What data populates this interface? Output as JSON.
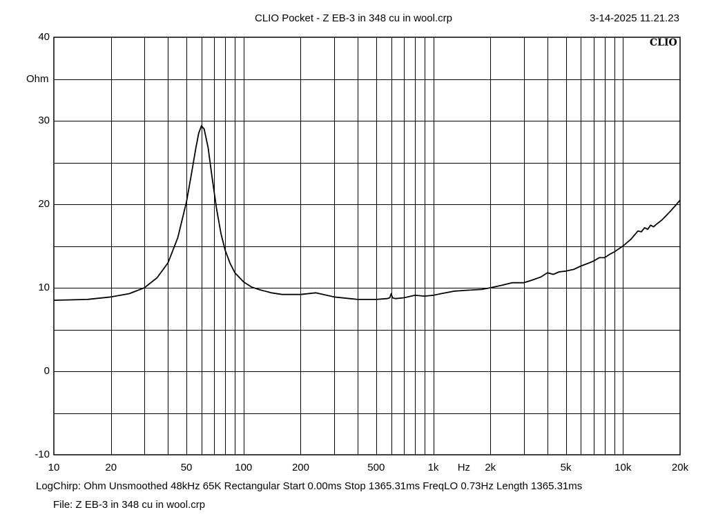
{
  "header": {
    "title": "CLIO Pocket - Z EB-3 in 348 cu in wool.crp",
    "timestamp": "3-14-2025 11.21.23",
    "brand": "CLIO"
  },
  "footer": {
    "settings": "LogChirp:  Ohm   Unsmoothed   48kHz   65K   Rectangular   Start 0.00ms    Stop 1365.31ms    FreqLO 0.73Hz    Length 1365.31ms",
    "file": "File: Z EB-3 in 348 cu in wool.crp"
  },
  "chart_data": {
    "type": "line",
    "title": "CLIO Pocket - Z EB-3 in 348 cu in wool.crp",
    "ylabel": "Ohm",
    "xlabel": "Hz",
    "x_scale": "log",
    "xlim": [
      10,
      20000
    ],
    "ylim": [
      -10,
      40
    ],
    "grid": true,
    "line_color": "#000000",
    "y_ticks": [
      {
        "value": 40,
        "label": "40"
      },
      {
        "value": 30,
        "label": "30"
      },
      {
        "value": 20,
        "label": "20"
      },
      {
        "value": 10,
        "label": "10"
      },
      {
        "value": 0,
        "label": "0"
      },
      {
        "value": -10,
        "label": "-10"
      }
    ],
    "x_ticks": [
      {
        "value": 10,
        "label": "10"
      },
      {
        "value": 20,
        "label": "20"
      },
      {
        "value": 50,
        "label": "50"
      },
      {
        "value": 100,
        "label": "100"
      },
      {
        "value": 200,
        "label": "200"
      },
      {
        "value": 500,
        "label": "500"
      },
      {
        "value": 1000,
        "label": "1k"
      },
      {
        "value": 2000,
        "label": "2k"
      },
      {
        "value": 5000,
        "label": "5k"
      },
      {
        "value": 10000,
        "label": "10k"
      },
      {
        "value": 20000,
        "label": "20k"
      }
    ],
    "series": [
      {
        "x": [
          10,
          15,
          20,
          25,
          30,
          35,
          40,
          45,
          50,
          53,
          56,
          58,
          60,
          62,
          65,
          68,
          72,
          76,
          80,
          85,
          90,
          100,
          110,
          120,
          140,
          160,
          200,
          240,
          300,
          400,
          500,
          570,
          590,
          600,
          610,
          630,
          700,
          800,
          900,
          1000,
          1100,
          1300,
          1500,
          1800,
          2000,
          2300,
          2600,
          3000,
          3300,
          3700,
          4000,
          4300,
          4600,
          5000,
          5500,
          6000,
          6500,
          7000,
          7500,
          8000,
          8500,
          9000,
          10000,
          11000,
          12000,
          12500,
          13000,
          13500,
          14000,
          14500,
          15000,
          16000,
          17000,
          18000,
          19000,
          20000
        ],
        "y": [
          8.5,
          8.6,
          8.9,
          9.3,
          10.0,
          11.2,
          13.0,
          16.0,
          20.3,
          23.5,
          26.7,
          28.5,
          29.4,
          29.0,
          26.8,
          23.5,
          19.5,
          16.5,
          14.5,
          12.9,
          11.8,
          10.7,
          10.1,
          9.8,
          9.4,
          9.2,
          9.2,
          9.4,
          8.9,
          8.6,
          8.6,
          8.7,
          8.8,
          9.3,
          8.8,
          8.7,
          8.8,
          9.1,
          9.0,
          9.1,
          9.3,
          9.6,
          9.7,
          9.8,
          10.0,
          10.3,
          10.6,
          10.6,
          10.9,
          11.3,
          11.8,
          11.6,
          11.9,
          12.0,
          12.2,
          12.6,
          12.9,
          13.2,
          13.6,
          13.6,
          14.0,
          14.3,
          15.0,
          15.8,
          16.8,
          16.7,
          17.2,
          17.0,
          17.5,
          17.3,
          17.6,
          18.1,
          18.7,
          19.3,
          19.9,
          20.5
        ]
      }
    ]
  }
}
